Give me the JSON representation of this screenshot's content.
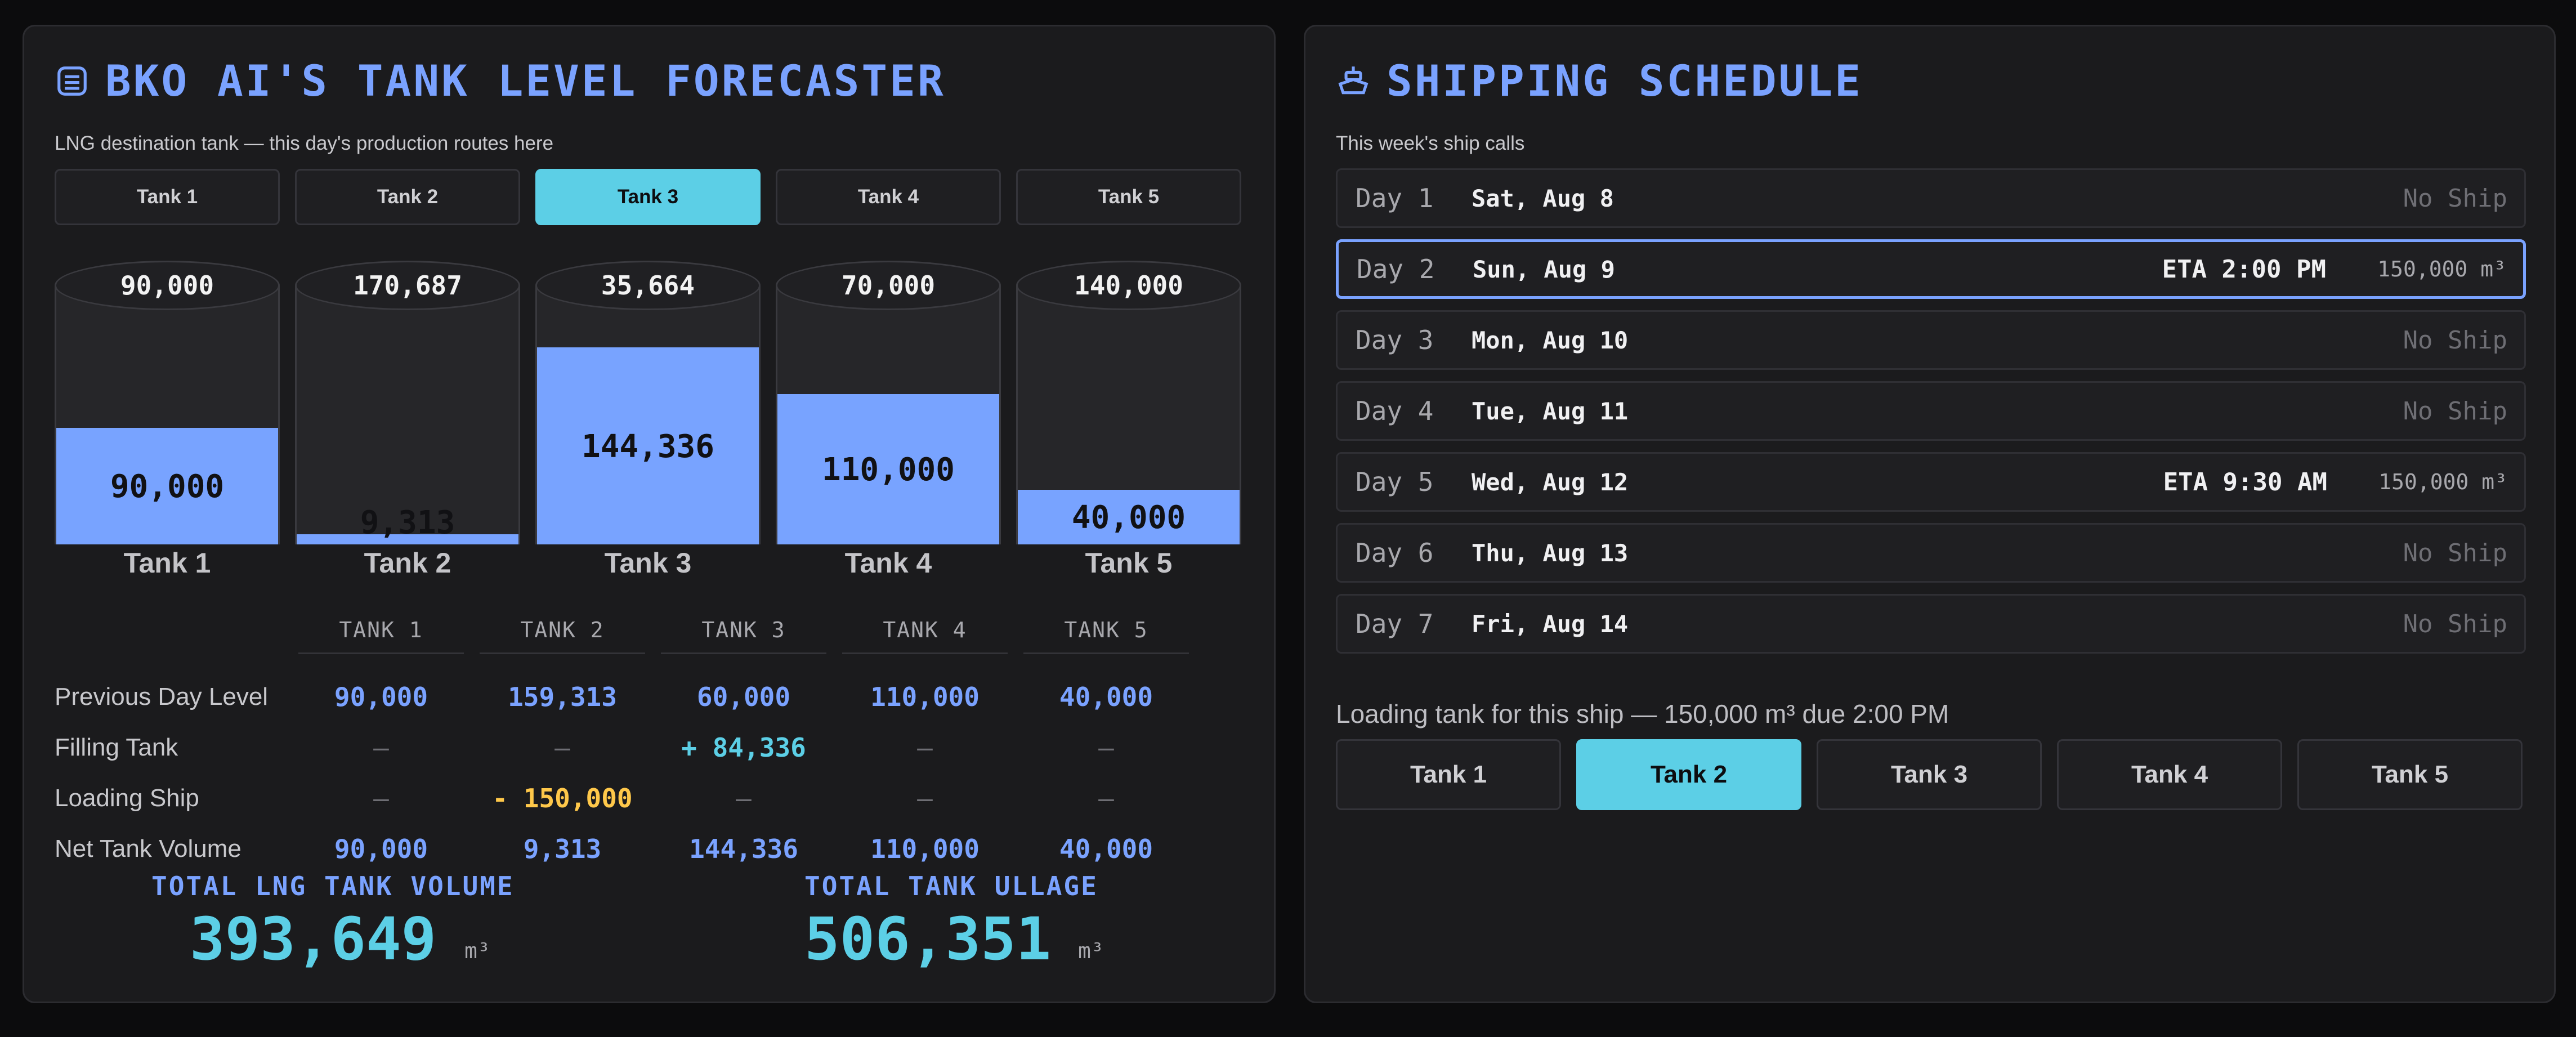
{
  "forecaster": {
    "title": "BKO AI'S TANK LEVEL FORECASTER",
    "subtitle": "LNG destination tank — this day's production routes here",
    "tabs": [
      "Tank 1",
      "Tank 2",
      "Tank 3",
      "Tank 4",
      "Tank 5"
    ],
    "active_tab": "Tank 3",
    "tanks": [
      {
        "label": "Tank 1",
        "capacity": "90,000",
        "level": "90,000",
        "fill_fraction": 0.45
      },
      {
        "label": "Tank 2",
        "capacity": "170,687",
        "level": "9,313",
        "fill_fraction": 0.04
      },
      {
        "label": "Tank 3",
        "capacity": "35,664",
        "level": "144,336",
        "fill_fraction": 0.76
      },
      {
        "label": "Tank 4",
        "capacity": "70,000",
        "level": "110,000",
        "fill_fraction": 0.58
      },
      {
        "label": "Tank 5",
        "capacity": "140,000",
        "level": "40,000",
        "fill_fraction": 0.21
      }
    ],
    "table": {
      "columns": [
        "TANK 1",
        "TANK 2",
        "TANK 3",
        "TANK 4",
        "TANK 5"
      ],
      "rows": [
        {
          "label": "Previous Day Level",
          "values": [
            "90,000",
            "159,313",
            "60,000",
            "110,000",
            "40,000"
          ]
        },
        {
          "label": "Filling Tank",
          "values": [
            "—",
            "—",
            "+ 84,336",
            "—",
            "—"
          ]
        },
        {
          "label": "Loading Ship",
          "values": [
            "—",
            "- 150,000",
            "—",
            "—",
            "—"
          ]
        },
        {
          "label": "Net Tank Volume",
          "values": [
            "90,000",
            "9,313",
            "144,336",
            "110,000",
            "40,000"
          ]
        }
      ]
    },
    "totals": {
      "volume_label": "TOTAL LNG TANK VOLUME",
      "volume_value": "393,649",
      "ullage_label": "TOTAL TANK ULLAGE",
      "ullage_value": "506,351",
      "unit": "m³"
    },
    "colors": {
      "accent": "#7aa2ff",
      "active": "#5ccfe6",
      "warning": "#ffc84a"
    }
  },
  "schedule": {
    "title": "SHIPPING SCHEDULE",
    "subtitle": "This week's ship calls",
    "days": [
      {
        "day": "Day 1",
        "date": "Sat, Aug 8",
        "status": "No Ship"
      },
      {
        "day": "Day 2",
        "date": "Sun, Aug 9",
        "eta": "ETA 2:00 PM",
        "volume": "150,000 m³",
        "selected": true
      },
      {
        "day": "Day 3",
        "date": "Mon, Aug 10",
        "status": "No Ship"
      },
      {
        "day": "Day 4",
        "date": "Tue, Aug 11",
        "status": "No Ship"
      },
      {
        "day": "Day 5",
        "date": "Wed, Aug 12",
        "eta": "ETA 9:30 AM",
        "volume": "150,000 m³"
      },
      {
        "day": "Day 6",
        "date": "Thu, Aug 13",
        "status": "No Ship"
      },
      {
        "day": "Day 7",
        "date": "Fri, Aug 14",
        "status": "No Ship"
      }
    ],
    "loading_caption": "Loading tank for this ship — 150,000 m³ due 2:00 PM",
    "loading_tabs": [
      "Tank 1",
      "Tank 2",
      "Tank 3",
      "Tank 4",
      "Tank 5"
    ],
    "loading_active": "Tank 2"
  }
}
